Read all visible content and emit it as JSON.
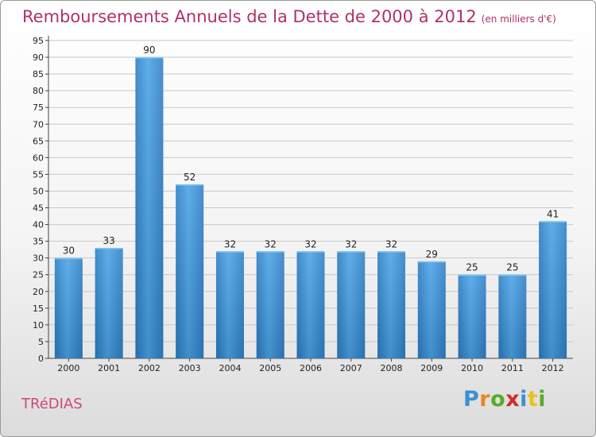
{
  "title": "Remboursements Annuels de la Dette de 2000 à 2012",
  "unit_note": "(en milliers d'€)",
  "commune": "TRéDIAS",
  "logo": {
    "letters": [
      "P",
      "r",
      "o",
      "x",
      "i",
      "t",
      "i"
    ],
    "colors": [
      "#3b8fd4",
      "#e8891d",
      "#5aaa2a",
      "#d42a2a",
      "#3b8fd4",
      "#e8c21d",
      "#5aaa2a"
    ]
  },
  "colors": {
    "bar": "#3a8fd8",
    "bar_light": "#5aaeea",
    "bar_dark": "#2a6fb0",
    "title": "#b0306a"
  },
  "chart_data": {
    "type": "bar",
    "categories": [
      "2000",
      "2001",
      "2002",
      "2003",
      "2004",
      "2005",
      "2006",
      "2007",
      "2008",
      "2009",
      "2010",
      "2011",
      "2012"
    ],
    "values": [
      30,
      33,
      90,
      52,
      32,
      32,
      32,
      32,
      32,
      29,
      25,
      25,
      41
    ],
    "data_labels": [
      "30",
      "33",
      "90",
      "52",
      "32",
      "32",
      "32",
      "32",
      "32",
      "29",
      "25",
      "25",
      "41"
    ],
    "yticks": [
      "0",
      "5",
      "10",
      "15",
      "20",
      "25",
      "30",
      "35",
      "40",
      "45",
      "50",
      "55",
      "60",
      "65",
      "70",
      "75",
      "80",
      "85",
      "90",
      "95"
    ],
    "ylim": [
      0,
      95
    ],
    "grid": true,
    "xlabel": "",
    "ylabel": ""
  }
}
